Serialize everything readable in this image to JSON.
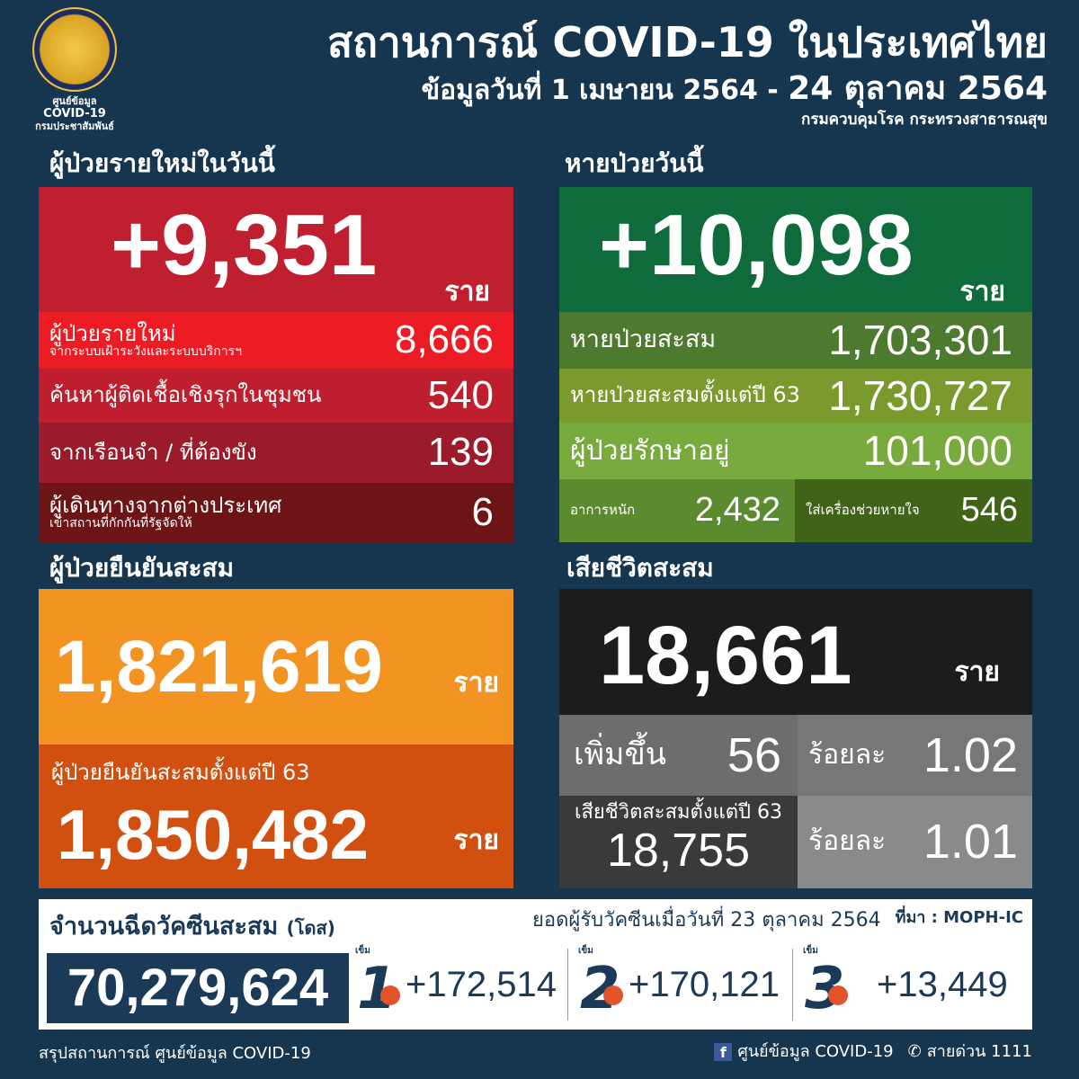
{
  "header": {
    "logo_caption": [
      "ศูนย์ข้อมูล",
      "COVID-19",
      "กรมประชาสัมพันธ์"
    ],
    "title": "สถานการณ์ COVID-19 ในประเทศไทย",
    "subtitle_a": "ข้อมูลวันที่ 1 เมษายน 2564 - ",
    "subtitle_b": "24 ตุลาคม 2564",
    "source": "กรมควบคุมโรค กระทรวงสาธารณสุข"
  },
  "unit": "ราย",
  "new_cases": {
    "heading": "ผู้ป่วยรายใหม่ในวันนี้",
    "total": "+9,351",
    "rows": [
      {
        "label": "ผู้ป่วยรายใหม่",
        "sub": "จากระบบเฝ้าระวังและระบบบริการฯ",
        "value": "8,666"
      },
      {
        "label": "ค้นหาผู้ติดเชื้อเชิงรุกในชุมชน",
        "sub": "",
        "value": "540"
      },
      {
        "label": "จากเรือนจำ / ที่ต้องขัง",
        "sub": "",
        "value": "139"
      },
      {
        "label": "ผู้เดินทางจากต่างประเทศ",
        "sub": "เข้าสถานที่กักกันที่รัฐจัดให้",
        "value": "6"
      }
    ]
  },
  "recovered": {
    "heading": "หายป่วยวันนี้",
    "total": "+10,098",
    "rows": [
      {
        "label": "หายป่วยสะสม",
        "value": "1,703,301"
      },
      {
        "label": "หายป่วยสะสมตั้งแต่ปี 63",
        "value": "1,730,727"
      },
      {
        "label": "ผู้ป่วยรักษาอยู่",
        "value": "101,000"
      }
    ],
    "severe_label": "อาการหนัก",
    "severe_value": "2,432",
    "ventilator_label": "ใส่เครื่องช่วยหายใจ",
    "ventilator_value": "546"
  },
  "confirmed": {
    "heading": "ผู้ป่วยยืนยันสะสม",
    "total": "1,821,619",
    "since63_label": "ผู้ป่วยยืนยันสะสมตั้งแต่ปี 63",
    "since63_value": "1,850,482"
  },
  "deaths": {
    "heading": "เสียชีวิตสะสม",
    "total": "18,661",
    "increase_label": "เพิ่มขึ้น",
    "increase_value": "56",
    "pct_label": "ร้อยละ",
    "pct_value": "1.02",
    "since63_label": "เสียชีวิตสะสมตั้งแต่ปี 63",
    "since63_value": "18,755",
    "pct2_value": "1.01"
  },
  "vaccine": {
    "heading": "จำนวนฉีดวัคซีนสะสม",
    "heading_unit": "(โดส)",
    "date_label": "ยอดผู้รับวัคซีนเมื่อวันที่ 23 ตุลาคม 2564",
    "source": "ที่มา : MOPH-IC",
    "total": "70,279,624",
    "dose_prefix": "เข็ม",
    "doses": [
      {
        "n": "1",
        "value": "+172,514"
      },
      {
        "n": "2",
        "value": "+170,121"
      },
      {
        "n": "3",
        "value": "+13,449"
      }
    ]
  },
  "footer": {
    "left": "สรุปสถานการณ์ ศูนย์ข้อมูล COVID-19",
    "facebook": "ศูนย์ข้อมูล COVID-19",
    "hotline": "สายด่วน 1111"
  },
  "colors": {
    "background": "#16364f",
    "red": "#c01f2f",
    "green": "#0f6a3c",
    "orange": "#f39321",
    "dark": "#1c1c1c"
  }
}
